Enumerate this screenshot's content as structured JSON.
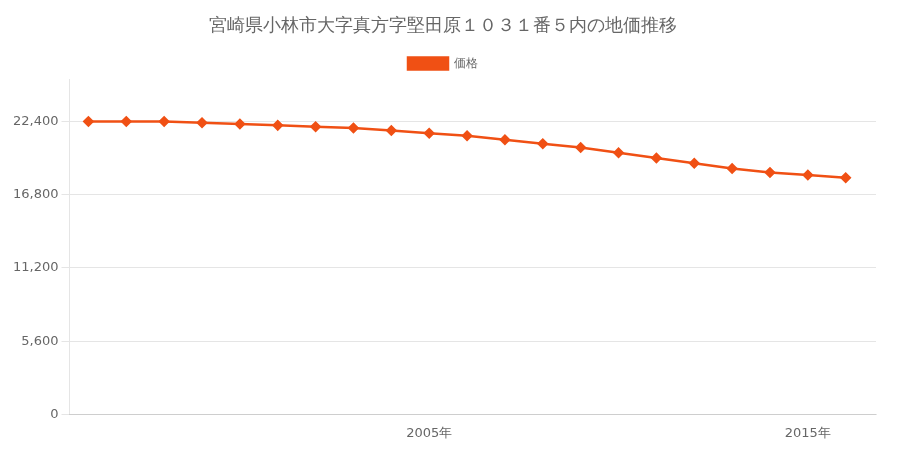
{
  "chart_data": {
    "type": "line",
    "title": "宮崎県小林市大字真方字堅田原１０３１番５内の地価推移",
    "x": [
      1996,
      1997,
      1998,
      1999,
      2000,
      2001,
      2002,
      2003,
      2004,
      2005,
      2006,
      2007,
      2008,
      2009,
      2010,
      2011,
      2012,
      2013,
      2014,
      2015,
      2016
    ],
    "series": [
      {
        "name": "価格",
        "color": "#f05014",
        "marker": "diamond",
        "line_style": "solid",
        "values": [
          22400,
          22400,
          22400,
          22300,
          22200,
          22100,
          22000,
          21900,
          21700,
          21500,
          21300,
          21000,
          20700,
          20400,
          20000,
          19600,
          19200,
          18800,
          18500,
          18300,
          18100
        ]
      }
    ],
    "xlim": [
      1995.5,
      2016.8
    ],
    "xticks": [
      {
        "value": 2005,
        "label": "2005年"
      },
      {
        "value": 2015,
        "label": "2015年"
      }
    ],
    "ylim": [
      0,
      25600
    ],
    "yticks": [
      0,
      {
        "value": 5600,
        "label": "5,600"
      },
      {
        "value": 11200,
        "label": "11,200"
      },
      {
        "value": 16800,
        "label": "16,800"
      },
      {
        "value": 22400,
        "label": "22,400"
      }
    ],
    "grid": "y",
    "legend": "top"
  }
}
